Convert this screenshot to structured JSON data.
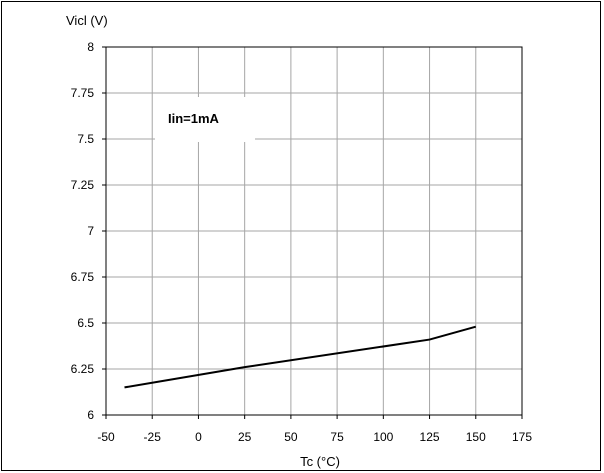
{
  "chart_data": {
    "type": "line",
    "title": "",
    "xlabel": "Tc (°C)",
    "ylabel": "Vicl (V)",
    "xlim": [
      -50,
      175
    ],
    "ylim": [
      6,
      8
    ],
    "x_ticks": [
      "-50",
      "-25",
      "0",
      "25",
      "50",
      "75",
      "100",
      "125",
      "150",
      "175"
    ],
    "y_ticks": [
      "6",
      "6.25",
      "6.5",
      "6.75",
      "7",
      "7.25",
      "7.5",
      "7.75",
      "8"
    ],
    "grid": true,
    "annotation": "Iin=1mA",
    "series": [
      {
        "color": "#000000",
        "x": [
          -40,
          25,
          125,
          150
        ],
        "y": [
          6.15,
          6.26,
          6.41,
          6.48
        ]
      }
    ]
  }
}
